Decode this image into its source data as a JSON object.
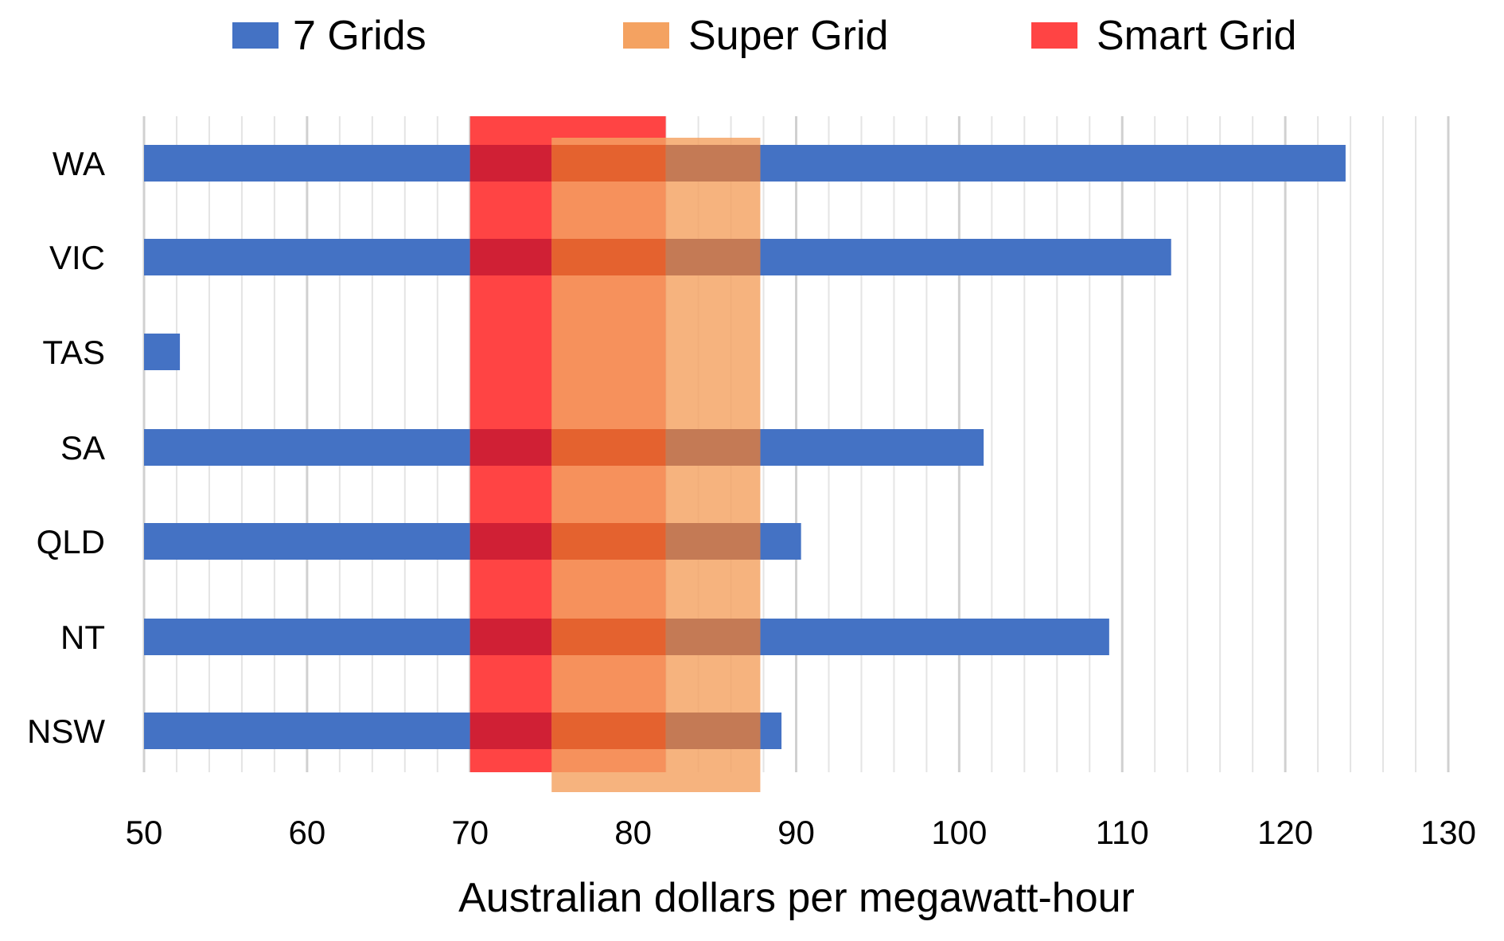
{
  "chart_data": {
    "type": "bar",
    "orientation": "horizontal",
    "title": "",
    "xlabel": "Australian dollars per megawatt-hour",
    "ylabel": "",
    "xlim": [
      50,
      130
    ],
    "xticks": [
      50,
      60,
      70,
      80,
      90,
      100,
      110,
      120,
      130
    ],
    "minor_grid_step": 2,
    "grid": true,
    "legend_position": "top",
    "categories": [
      "WA",
      "VIC",
      "TAS",
      "SA",
      "QLD",
      "NT",
      "NSW"
    ],
    "series": [
      {
        "name": "7 Grids",
        "color": "#4472C4",
        "values": [
          123.7,
          113.0,
          52.2,
          101.5,
          90.3,
          109.2,
          89.1
        ]
      }
    ],
    "ranges": [
      {
        "name": "Super Grid",
        "color": "#F4A261",
        "opacity": 0.85,
        "start": 75,
        "end": 87.8
      },
      {
        "name": "Smart Grid",
        "color": "#FF4444",
        "opacity": 1,
        "start": 70,
        "end": 82
      }
    ],
    "legend": [
      {
        "label": "7 Grids",
        "color": "#4472C4"
      },
      {
        "label": "Super Grid",
        "color": "#F4A261"
      },
      {
        "label": "Smart Grid",
        "color": "#FF4444"
      }
    ]
  }
}
